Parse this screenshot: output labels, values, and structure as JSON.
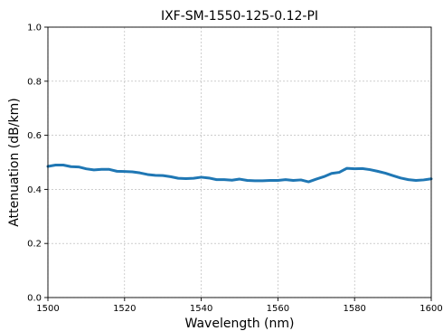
{
  "chart_data": {
    "type": "line",
    "title": "IXF-SM-1550-125-0.12-PI",
    "xlabel": "Wavelength (nm)",
    "ylabel": "Attenuation (dB/km)",
    "xlim": [
      1500,
      1600
    ],
    "ylim": [
      0.0,
      1.0
    ],
    "xticks": [
      1500,
      1520,
      1540,
      1560,
      1580,
      1600
    ],
    "yticks": [
      0.0,
      0.2,
      0.4,
      0.6,
      0.8,
      1.0
    ],
    "xtick_labels": [
      "1500",
      "1520",
      "1540",
      "1560",
      "1580",
      "1600"
    ],
    "ytick_labels": [
      "0.0",
      "0.2",
      "0.4",
      "0.6",
      "0.8",
      "1.0"
    ],
    "grid": true,
    "series": [
      {
        "color": "#1f77b4",
        "x": [
          1500,
          1502,
          1504,
          1506,
          1508,
          1510,
          1512,
          1514,
          1516,
          1518,
          1520,
          1522,
          1524,
          1526,
          1528,
          1530,
          1532,
          1534,
          1536,
          1538,
          1540,
          1542,
          1544,
          1546,
          1548,
          1550,
          1552,
          1554,
          1556,
          1558,
          1560,
          1562,
          1564,
          1566,
          1568,
          1570,
          1572,
          1574,
          1576,
          1578,
          1580,
          1582,
          1584,
          1586,
          1588,
          1590,
          1592,
          1594,
          1596,
          1598,
          1600
        ],
        "y": [
          0.485,
          0.49,
          0.49,
          0.484,
          0.483,
          0.476,
          0.472,
          0.474,
          0.474,
          0.467,
          0.466,
          0.465,
          0.461,
          0.455,
          0.452,
          0.451,
          0.447,
          0.441,
          0.44,
          0.441,
          0.445,
          0.442,
          0.436,
          0.436,
          0.434,
          0.438,
          0.433,
          0.432,
          0.432,
          0.433,
          0.433,
          0.436,
          0.433,
          0.435,
          0.428,
          0.438,
          0.447,
          0.459,
          0.463,
          0.478,
          0.476,
          0.477,
          0.473,
          0.467,
          0.46,
          0.451,
          0.442,
          0.436,
          0.433,
          0.435,
          0.439
        ]
      }
    ]
  }
}
